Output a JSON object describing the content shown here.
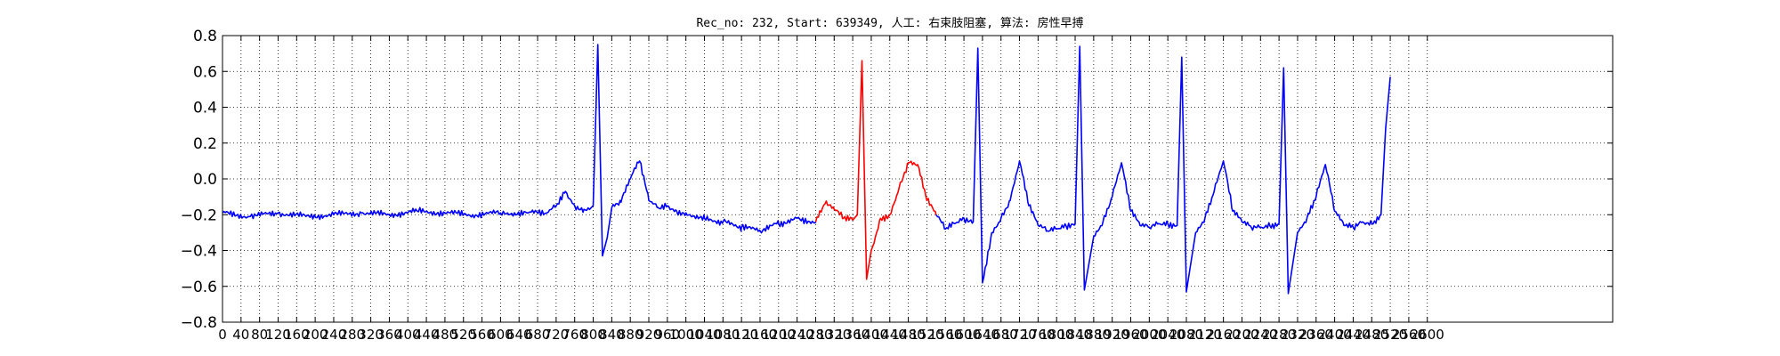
{
  "chart_data": {
    "type": "line",
    "title": "Rec_no: 232, Start: 639349, 人工: 右束肢阻塞, 算法: 房性早搏",
    "xlabel": "",
    "ylabel": "",
    "xlim": [
      0,
      3000
    ],
    "ylim": [
      -0.8,
      0.8
    ],
    "grid": true,
    "y_ticks": [
      -0.8,
      -0.6,
      -0.4,
      -0.2,
      0.0,
      0.2,
      0.4,
      0.6,
      0.8
    ],
    "y_tick_labels": [
      "−0.8",
      "−0.6",
      "−0.4",
      "−0.2",
      "0.0",
      "0.2",
      "0.4",
      "0.6",
      "0.8"
    ],
    "x_ticks": [
      0,
      40,
      80,
      120,
      160,
      200,
      240,
      280,
      320,
      360,
      400,
      440,
      480,
      520,
      560,
      600,
      640,
      680,
      720,
      760,
      800,
      840,
      880,
      920,
      960,
      1000,
      1040,
      1080,
      1120,
      1160,
      1200,
      1240,
      1280,
      1320,
      1360,
      1400,
      1440,
      1480,
      1520,
      1560,
      1600,
      1640,
      1680,
      1720,
      1760,
      1800,
      1840,
      1880,
      1920,
      1960,
      2000,
      2040,
      2080,
      2120,
      2160,
      2200,
      2240,
      2280,
      2320,
      2360,
      2400,
      2440,
      2480,
      2520,
      2560,
      2600
    ],
    "x_tick_labels": [
      "0",
      "40",
      "80",
      "120",
      "160",
      "200",
      "240",
      "280",
      "320",
      "360",
      "400",
      "440",
      "480",
      "520",
      "560",
      "600",
      "640",
      "680",
      "720",
      "760",
      "800",
      "840",
      "880",
      "920",
      "960",
      "1000",
      "1040",
      "1080",
      "1120",
      "1160",
      "1200",
      "1240",
      "1280",
      "1320",
      "1360",
      "1400",
      "1440",
      "1480",
      "1520",
      "1560",
      "1600",
      "1640",
      "1680",
      "1720",
      "1760",
      "1800",
      "1840",
      "1880",
      "1920",
      "1960",
      "2000",
      "2040",
      "2080",
      "2120",
      "2160",
      "2200",
      "2240",
      "2280",
      "2320",
      "2360",
      "2400",
      "2440",
      "2480",
      "2520",
      "2560",
      "2600"
    ],
    "series": [
      {
        "color": "#0000ff",
        "x": [
          0,
          60,
          120,
          180,
          240,
          300,
          360,
          420,
          480,
          540,
          600,
          660,
          700,
          720,
          740,
          760,
          780,
          800,
          810,
          820,
          830,
          840,
          860,
          880,
          900,
          920,
          940,
          960,
          980,
          1000,
          1040,
          1080,
          1120,
          1160,
          1200,
          1240,
          1280
        ],
        "y": [
          -0.19,
          -0.21,
          -0.19,
          -0.21,
          -0.2,
          -0.19,
          -0.2,
          -0.18,
          -0.19,
          -0.2,
          -0.19,
          -0.19,
          -0.19,
          -0.15,
          -0.07,
          -0.15,
          -0.17,
          -0.15,
          0.75,
          -0.43,
          -0.33,
          -0.16,
          -0.13,
          0.0,
          0.1,
          -0.12,
          -0.16,
          -0.15,
          -0.18,
          -0.19,
          -0.22,
          -0.24,
          -0.27,
          -0.29,
          -0.25,
          -0.22,
          -0.24
        ]
      },
      {
        "color": "#ff0000",
        "x": [
          1280,
          1300,
          1320,
          1340,
          1360,
          1370,
          1380,
          1390,
          1400,
          1420,
          1440,
          1460,
          1480,
          1500,
          1520,
          1540
        ],
        "y": [
          -0.24,
          -0.14,
          -0.17,
          -0.22,
          -0.23,
          -0.2,
          0.66,
          -0.56,
          -0.4,
          -0.22,
          -0.2,
          -0.05,
          0.09,
          0.08,
          -0.12,
          -0.2
        ]
      },
      {
        "color": "#0000ff",
        "x": [
          1540,
          1560,
          1580,
          1600,
          1620,
          1630,
          1640,
          1660,
          1680,
          1700,
          1720,
          1740,
          1760,
          1780,
          1800,
          1820,
          1840,
          1850,
          1860,
          1880,
          1900,
          1920,
          1940,
          1960,
          1980,
          2000,
          2020,
          2040,
          2060,
          2070,
          2080,
          2100,
          2120,
          2140,
          2160,
          2180,
          2200,
          2220,
          2240,
          2260,
          2280,
          2290,
          2300,
          2320,
          2340,
          2360,
          2380,
          2400,
          2420,
          2440,
          2460,
          2480,
          2500,
          2510,
          2520
        ],
        "y": [
          -0.2,
          -0.28,
          -0.25,
          -0.22,
          -0.24,
          0.73,
          -0.58,
          -0.3,
          -0.22,
          -0.12,
          0.1,
          -0.15,
          -0.26,
          -0.29,
          -0.28,
          -0.26,
          -0.25,
          0.74,
          -0.62,
          -0.32,
          -0.24,
          -0.1,
          0.09,
          -0.18,
          -0.26,
          -0.27,
          -0.25,
          -0.25,
          -0.26,
          0.68,
          -0.63,
          -0.3,
          -0.22,
          -0.07,
          0.1,
          -0.18,
          -0.24,
          -0.27,
          -0.27,
          -0.26,
          -0.25,
          0.62,
          -0.64,
          -0.3,
          -0.22,
          -0.1,
          0.08,
          -0.18,
          -0.26,
          -0.27,
          -0.24,
          -0.25,
          -0.2,
          0.28,
          0.57
        ]
      }
    ]
  }
}
